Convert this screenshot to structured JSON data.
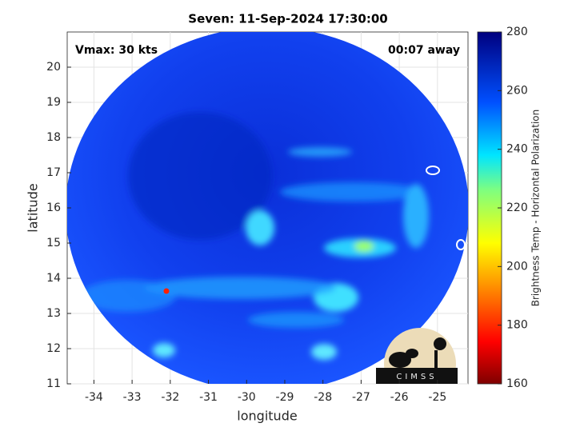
{
  "title": "Seven: 11-Sep-2024 17:30:00",
  "annotations": {
    "vmax": "Vmax: 30 kts",
    "time_away": "00:07 away"
  },
  "x_axis": {
    "label": "longitude",
    "lim": [
      -34.7,
      -24.2
    ],
    "ticks": [
      -34,
      -33,
      -32,
      -31,
      -30,
      -29,
      -28,
      -27,
      -26,
      -25
    ]
  },
  "y_axis": {
    "label": "latitude",
    "lim": [
      11,
      21
    ],
    "ticks": [
      11,
      12,
      13,
      14,
      15,
      16,
      17,
      18,
      19,
      20
    ]
  },
  "colorbar": {
    "label": "Brightness Temp - Horizontal Polarization",
    "lim": [
      160,
      280
    ],
    "ticks": [
      160,
      180,
      200,
      220,
      240,
      260,
      280
    ]
  },
  "logo": "CIMSS"
}
